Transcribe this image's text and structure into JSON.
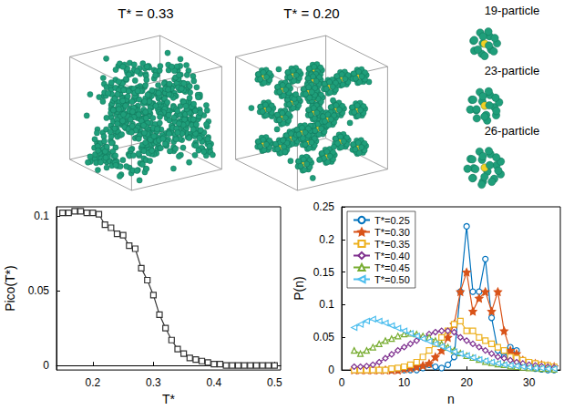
{
  "snapshots": [
    {
      "label": "T* = 0.33"
    },
    {
      "label": "T* = 0.20"
    }
  ],
  "clusters": [
    {
      "label": "19-particle"
    },
    {
      "label": "23-particle"
    },
    {
      "label": "26-particle"
    }
  ],
  "chart_data": [
    {
      "type": "line",
      "xlabel": "T*",
      "ylabel": "Pico(T*)",
      "x": [
        0.15,
        0.16,
        0.17,
        0.18,
        0.19,
        0.2,
        0.21,
        0.22,
        0.23,
        0.24,
        0.25,
        0.26,
        0.27,
        0.28,
        0.29,
        0.3,
        0.31,
        0.32,
        0.33,
        0.34,
        0.35,
        0.36,
        0.37,
        0.38,
        0.39,
        0.4,
        0.41,
        0.42,
        0.43,
        0.44,
        0.45,
        0.46,
        0.47,
        0.48,
        0.49,
        0.5
      ],
      "series": [
        {
          "color": "#333333",
          "marker": "square",
          "values": [
            0.102,
            0.102,
            0.103,
            0.103,
            0.102,
            0.102,
            0.101,
            0.094,
            0.092,
            0.088,
            0.087,
            0.08,
            0.078,
            0.065,
            0.057,
            0.047,
            0.034,
            0.025,
            0.017,
            0.011,
            0.008,
            0.005,
            0.004,
            0.003,
            0.002,
            0.001,
            0.001,
            0,
            0,
            0,
            0,
            0,
            0,
            0,
            0,
            0
          ]
        }
      ],
      "xlim": [
        0.14,
        0.51
      ],
      "xticks": [
        0.2,
        0.3,
        0.4,
        0.5
      ],
      "ylim": [
        -0.003,
        0.106
      ],
      "yticks": [
        0,
        0.05,
        0.1
      ],
      "grid": false
    },
    {
      "type": "line",
      "xlabel": "n",
      "ylabel": "P(n)",
      "x": [
        2,
        3,
        4,
        5,
        6,
        7,
        8,
        9,
        10,
        11,
        12,
        13,
        14,
        15,
        16,
        17,
        18,
        19,
        20,
        21,
        22,
        23,
        24,
        25,
        26,
        27,
        28,
        29,
        30,
        31,
        32,
        33,
        34
      ],
      "series": [
        {
          "name": "T*=0.25",
          "color": "#0072BD",
          "marker": "circle",
          "values": [
            0,
            0,
            0,
            0,
            0,
            0,
            0,
            0,
            0,
            0,
            0,
            0.003,
            0.008,
            0.005,
            0.003,
            0.008,
            0.02,
            0.12,
            0.22,
            0.12,
            0.12,
            0.17,
            0.08,
            0.03,
            0.02,
            0.035,
            0.03,
            0.01,
            0.005,
            0.002,
            0.001,
            0,
            0
          ]
        },
        {
          "name": "T*=0.30",
          "color": "#D95319",
          "marker": "star",
          "values": [
            0,
            0,
            0,
            0,
            0,
            0,
            0,
            0,
            0.002,
            0.003,
            0.005,
            0.007,
            0.01,
            0.02,
            0.03,
            0.05,
            0.07,
            0.12,
            0.15,
            0.09,
            0.11,
            0.12,
            0.09,
            0.12,
            0.06,
            0.03,
            0.025,
            0.015,
            0.01,
            0.01,
            0.008,
            0.006,
            0.005
          ]
        },
        {
          "name": "T*=0.35",
          "color": "#EDB120",
          "marker": "square",
          "values": [
            0,
            0,
            0,
            0,
            0,
            0,
            0.002,
            0.003,
            0.005,
            0.008,
            0.012,
            0.02,
            0.03,
            0.04,
            0.05,
            0.06,
            0.07,
            0.075,
            0.06,
            0.06,
            0.05,
            0.045,
            0.04,
            0.035,
            0.03,
            0.02,
            0.018,
            0.015,
            0.012,
            0.01,
            0.008,
            0.007,
            0.005
          ]
        },
        {
          "name": "T*=0.40",
          "color": "#7E2F8E",
          "marker": "diamond",
          "values": [
            0.005,
            0.005,
            0.006,
            0.008,
            0.012,
            0.018,
            0.024,
            0.03,
            0.035,
            0.04,
            0.045,
            0.05,
            0.055,
            0.058,
            0.06,
            0.06,
            0.058,
            0.05,
            0.045,
            0.04,
            0.035,
            0.03,
            0.025,
            0.02,
            0.018,
            0.015,
            0.012,
            0.01,
            0.008,
            0.007,
            0.006,
            0.005,
            0.004
          ]
        },
        {
          "name": "T*=0.45",
          "color": "#77AC30",
          "marker": "triangle-up",
          "values": [
            0.03,
            0.025,
            0.03,
            0.035,
            0.04,
            0.045,
            0.048,
            0.052,
            0.055,
            0.056,
            0.055,
            0.052,
            0.05,
            0.045,
            0.04,
            0.035,
            0.03,
            0.026,
            0.022,
            0.019,
            0.016,
            0.013,
            0.011,
            0.009,
            0.008,
            0.006,
            0.005,
            0.004,
            0.003,
            0.003,
            0.002,
            0.002,
            0.001
          ]
        },
        {
          "name": "T*=0.50",
          "color": "#4DBEEE",
          "marker": "triangle-left",
          "values": [
            0.065,
            0.07,
            0.075,
            0.078,
            0.075,
            0.072,
            0.068,
            0.064,
            0.06,
            0.056,
            0.052,
            0.048,
            0.044,
            0.04,
            0.036,
            0.032,
            0.028,
            0.025,
            0.022,
            0.019,
            0.016,
            0.014,
            0.012,
            0.01,
            0.008,
            0.007,
            0.006,
            0.005,
            0.004,
            0.003,
            0.003,
            0.002,
            0.002
          ]
        }
      ],
      "xlim": [
        0,
        35
      ],
      "xticks": [
        0,
        10,
        20,
        30
      ],
      "ylim": [
        0,
        0.25
      ],
      "yticks": [
        0,
        0.05,
        0.1,
        0.15,
        0.2,
        0.25
      ],
      "legend": "upper left",
      "grid": false
    }
  ]
}
